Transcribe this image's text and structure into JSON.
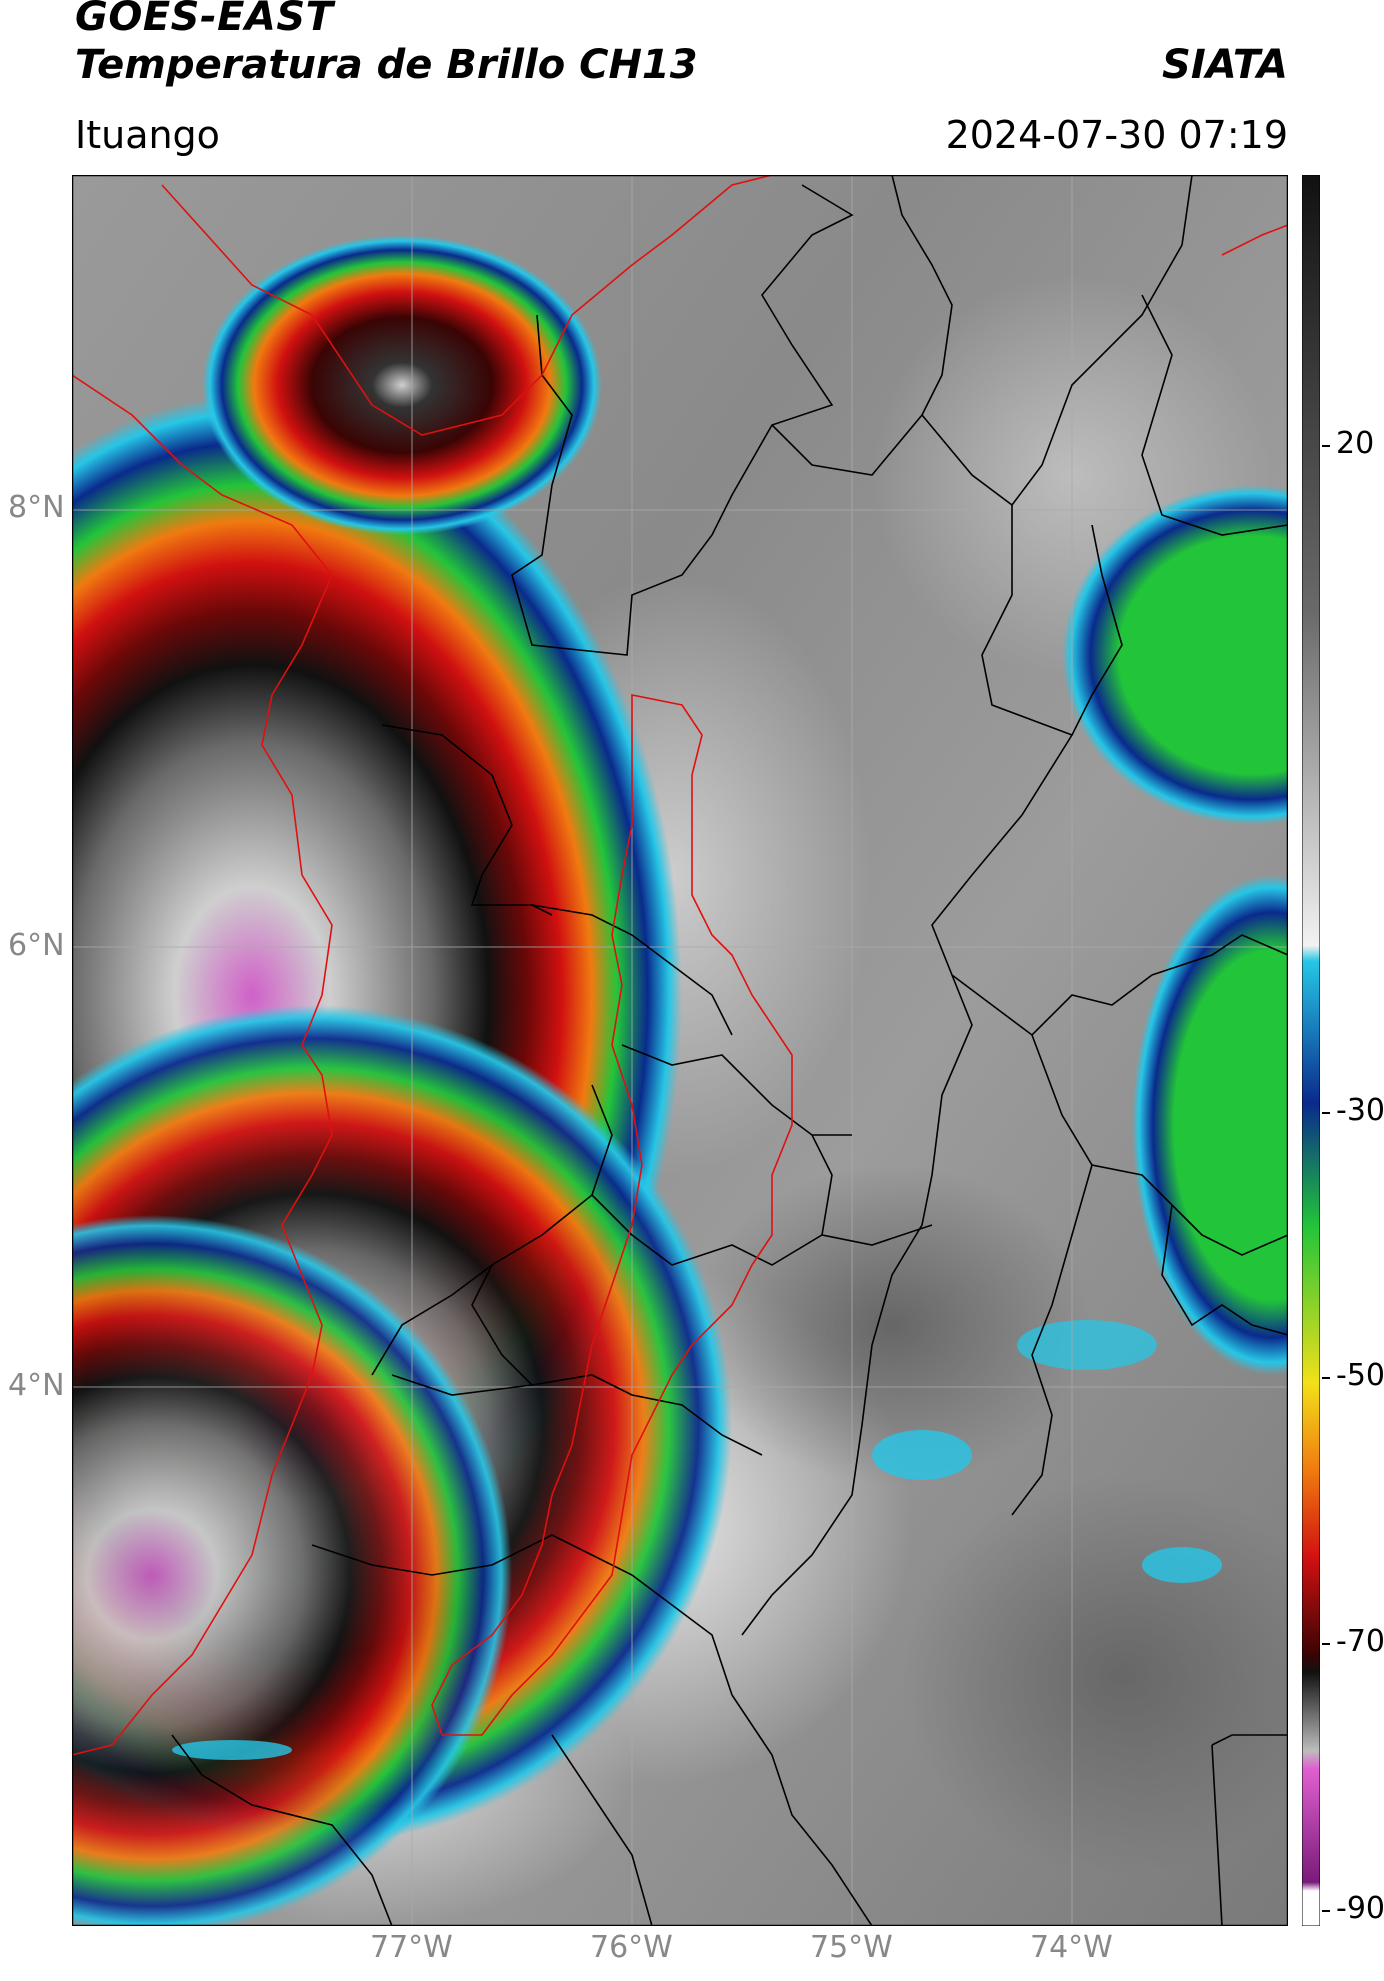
{
  "header": {
    "title_line1": "GOES-EAST",
    "title_line2": "Temperatura de Brillo CH13",
    "organization": "SIATA",
    "location": "Ituango",
    "datetime": "2024-07-30 07:19"
  },
  "map": {
    "lat_labels": [
      "8°N",
      "6°N",
      "4°N"
    ],
    "lon_labels": [
      "77°W",
      "76°W",
      "75°W",
      "74°W"
    ]
  },
  "colorbar": {
    "tick_labels": [
      "20",
      "-30",
      "-50",
      "-70",
      "-90"
    ],
    "ticks": [
      20,
      -30,
      -50,
      -70,
      -90
    ],
    "range": [
      -90,
      35
    ],
    "colors": {
      "warm": "#4a4a4a",
      "cold_gray": "#d9d9d9",
      "cyan": "#26c6e6",
      "blue": "#0a2a8c",
      "green": "#22c43a",
      "yellow": "#f2e01a",
      "orange": "#f07a10",
      "red": "#d01010",
      "darkred": "#4a0606",
      "black": "#111111",
      "magenta": "#d060c8"
    }
  }
}
